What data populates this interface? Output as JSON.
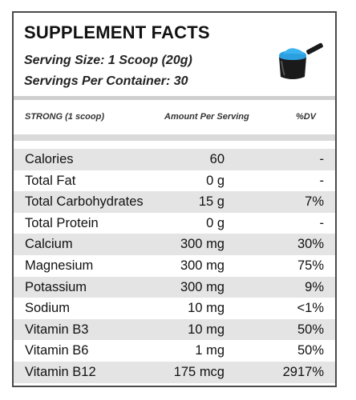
{
  "panel": {
    "title": "SUPPLEMENT FACTS",
    "serving_size": "Serving Size: 1 Scoop (20g)",
    "servings_per_container": "Servings Per Container: 30",
    "scoop_icon": "scoop-icon",
    "header": {
      "name": "STRONG (1 scoop)",
      "amount": "Amount Per Serving",
      "dv": "%DV"
    },
    "rows": [
      {
        "name": "Calories",
        "amount": "60",
        "dv": "-"
      },
      {
        "name": "Total Fat",
        "amount": "0 g",
        "dv": "-"
      },
      {
        "name": "Total Carbohydrates",
        "amount": "15 g",
        "dv": "7%"
      },
      {
        "name": "Total Protein",
        "amount": "0 g",
        "dv": "-"
      },
      {
        "name": "Calcium",
        "amount": "300 mg",
        "dv": "30%"
      },
      {
        "name": "Magnesium",
        "amount": "300 mg",
        "dv": "75%"
      },
      {
        "name": "Potassium",
        "amount": "300 mg",
        "dv": "9%"
      },
      {
        "name": "Sodium",
        "amount": "10 mg",
        "dv": "<1%"
      },
      {
        "name": "Vitamin B3",
        "amount": "10 mg",
        "dv": "50%"
      },
      {
        "name": "Vitamin B6",
        "amount": "1 mg",
        "dv": "50%"
      },
      {
        "name": "Vitamin B12",
        "amount": "175 mcg",
        "dv": "2917%"
      }
    ],
    "colors": {
      "border": "#4a4a4a",
      "row_shade": "#e4e4e4",
      "scoop_body": "#1a1a1a",
      "powder": "#2b9fe0"
    }
  }
}
